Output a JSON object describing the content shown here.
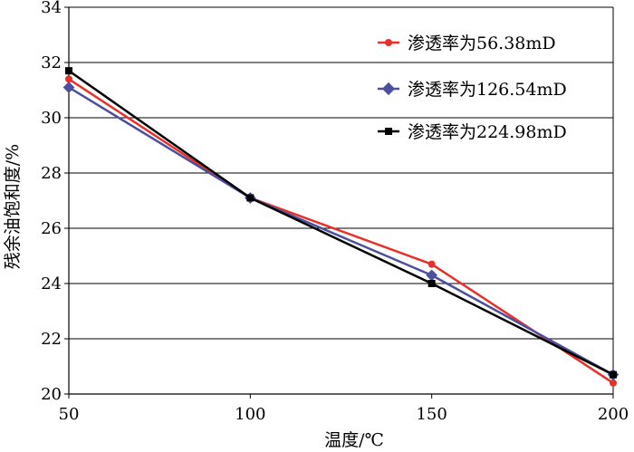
{
  "chart_data": {
    "type": "line",
    "xlabel": "温度/℃",
    "ylabel": "残余油饱和度/%",
    "x": [
      50,
      100,
      150,
      200
    ],
    "xlim": [
      50,
      200
    ],
    "ylim": [
      20,
      34
    ],
    "xticks": [
      "50",
      "100",
      "150",
      "200"
    ],
    "yticks": [
      "20",
      "22",
      "24",
      "26",
      "28",
      "30",
      "32",
      "34"
    ],
    "grid": "horizontal",
    "legend_position": "top-right",
    "series": [
      {
        "name": "渗透率为56.38mD",
        "values": [
          31.4,
          27.1,
          24.7,
          20.4
        ],
        "color": "#e8302a",
        "marker": "circle"
      },
      {
        "name": "渗透率为126.54mD",
        "values": [
          31.1,
          27.1,
          24.3,
          20.7
        ],
        "color": "#4a4f9e",
        "marker": "diamond"
      },
      {
        "name": "渗透率为224.98mD",
        "values": [
          31.7,
          27.1,
          24.0,
          20.7
        ],
        "color": "#000000",
        "marker": "square"
      }
    ]
  }
}
